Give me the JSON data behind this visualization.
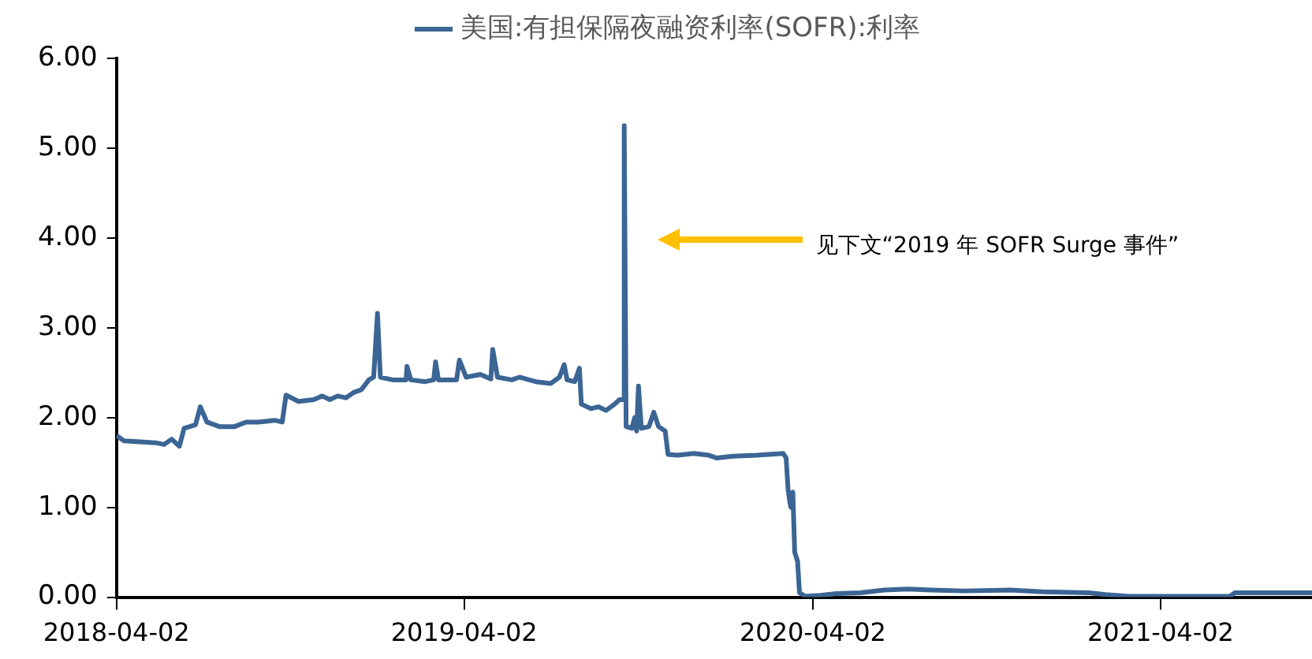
{
  "chart_data": {
    "type": "line",
    "legend": "top",
    "marker": "none",
    "line_style": "solid",
    "grid": false,
    "xlim": [
      "2018-04-02",
      "2021-09-08"
    ],
    "xticks": [
      "2018-04-02",
      "2019-04-02",
      "2020-04-02",
      "2021-04-02"
    ],
    "ylim": [
      0,
      6
    ],
    "yticks": [
      {
        "value": 0,
        "label": "0.00"
      },
      {
        "value": 1,
        "label": "1.00"
      },
      {
        "value": 2,
        "label": "2.00"
      },
      {
        "value": 3,
        "label": "3.00"
      },
      {
        "value": 4,
        "label": "4.00"
      },
      {
        "value": 5,
        "label": "5.00"
      },
      {
        "value": 6,
        "label": "6.00"
      }
    ],
    "annotations": [
      "见下文“2019 年 SOFR Surge 事件”"
    ],
    "series": [
      {
        "name": "美国:有担保隔夜融资利率(SOFR):利率",
        "color": "#3b6594",
        "x": [
          "2018-04-02",
          "2018-04-10",
          "2018-04-27",
          "2018-05-13",
          "2018-05-22",
          "2018-05-30",
          "2018-06-07",
          "2018-06-12",
          "2018-06-24",
          "2018-06-29",
          "2018-07-06",
          "2018-07-19",
          "2018-08-04",
          "2018-08-16",
          "2018-08-29",
          "2018-09-15",
          "2018-09-23",
          "2018-09-27",
          "2018-10-10",
          "2018-10-26",
          "2018-11-04",
          "2018-11-12",
          "2018-11-20",
          "2018-11-29",
          "2018-12-07",
          "2018-12-15",
          "2018-12-23",
          "2018-12-28",
          "2019-01-01",
          "2019-01-04",
          "2019-01-17",
          "2019-01-31",
          "2019-02-01",
          "2019-02-05",
          "2019-02-20",
          "2019-03-01",
          "2019-03-03",
          "2019-03-06",
          "2019-03-25",
          "2019-03-28",
          "2019-04-04",
          "2019-04-19",
          "2019-04-30",
          "2019-05-02",
          "2019-05-07",
          "2019-05-22",
          "2019-05-30",
          "2019-06-16",
          "2019-07-02",
          "2019-07-11",
          "2019-07-16",
          "2019-07-19",
          "2019-07-27",
          "2019-08-01",
          "2019-08-03",
          "2019-08-13",
          "2019-08-21",
          "2019-08-29",
          "2019-09-07",
          "2019-09-12",
          "2019-09-16",
          "2019-09-17",
          "2019-09-19",
          "2019-09-25",
          "2019-09-28",
          "2019-09-30",
          "2019-10-02",
          "2019-10-05",
          "2019-10-13",
          "2019-10-18",
          "2019-10-23",
          "2019-10-30",
          "2019-11-02",
          "2019-11-12",
          "2019-11-29",
          "2019-12-15",
          "2019-12-23",
          "2020-01-09",
          "2020-02-03",
          "2020-03-02",
          "2020-03-05",
          "2020-03-07",
          "2020-03-09",
          "2020-03-10",
          "2020-03-12",
          "2020-03-14",
          "2020-03-17",
          "2020-03-19",
          "2020-03-25",
          "2020-04-10",
          "2020-04-27",
          "2020-05-22",
          "2020-06-16",
          "2020-07-11",
          "2020-08-04",
          "2020-09-07",
          "2020-10-26",
          "2020-11-29",
          "2021-01-17",
          "2021-02-03",
          "2021-02-28",
          "2021-03-25",
          "2021-06-14",
          "2021-06-19",
          "2021-09-08"
        ],
        "values": [
          1.8,
          1.74,
          1.73,
          1.72,
          1.7,
          1.76,
          1.68,
          1.88,
          1.92,
          2.12,
          1.95,
          1.9,
          1.9,
          1.95,
          1.95,
          1.97,
          1.95,
          2.25,
          2.18,
          2.2,
          2.24,
          2.2,
          2.24,
          2.22,
          2.28,
          2.31,
          2.42,
          2.45,
          3.16,
          2.45,
          2.42,
          2.42,
          2.57,
          2.42,
          2.4,
          2.42,
          2.62,
          2.42,
          2.42,
          2.64,
          2.45,
          2.48,
          2.43,
          2.76,
          2.45,
          2.42,
          2.45,
          2.4,
          2.38,
          2.45,
          2.59,
          2.42,
          2.4,
          2.55,
          2.15,
          2.1,
          2.12,
          2.08,
          2.15,
          2.2,
          2.2,
          5.25,
          1.9,
          1.88,
          2.0,
          1.85,
          2.35,
          1.88,
          1.9,
          2.06,
          1.9,
          1.85,
          1.59,
          1.58,
          1.6,
          1.58,
          1.55,
          1.57,
          1.58,
          1.6,
          1.55,
          1.2,
          1.05,
          1.0,
          1.17,
          0.5,
          0.4,
          0.05,
          0.01,
          0.02,
          0.04,
          0.05,
          0.08,
          0.09,
          0.08,
          0.07,
          0.08,
          0.06,
          0.05,
          0.03,
          0.01,
          0.01,
          0.01,
          0.05,
          0.05
        ]
      }
    ]
  }
}
